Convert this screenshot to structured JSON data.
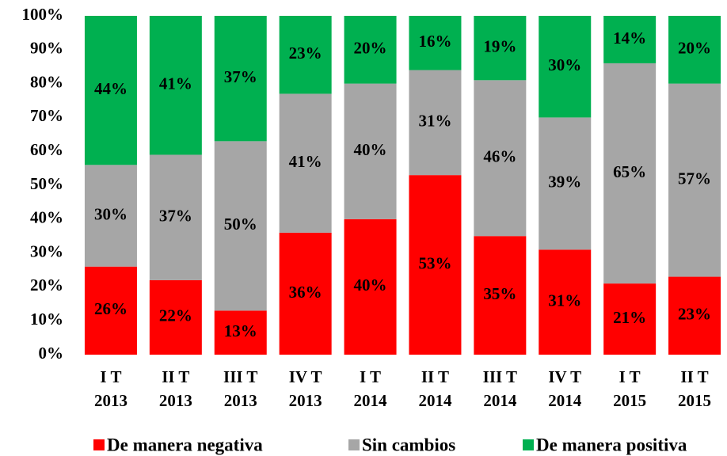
{
  "chart_data": {
    "type": "stacked_bar",
    "categories": [
      [
        "I T",
        "2013"
      ],
      [
        "II T",
        "2013"
      ],
      [
        "III T",
        "2013"
      ],
      [
        "IV T",
        "2013"
      ],
      [
        "I T",
        "2014"
      ],
      [
        "II T",
        "2014"
      ],
      [
        "III T",
        "2014"
      ],
      [
        "IV T",
        "2014"
      ],
      [
        "I T",
        "2015"
      ],
      [
        "II T",
        "2015"
      ]
    ],
    "series": [
      {
        "name": "De manera negativa",
        "color": "#ff0000",
        "values": [
          26,
          22,
          13,
          36,
          40,
          53,
          35,
          31,
          21,
          23
        ],
        "value_labels": [
          "26%",
          "22%",
          "13%",
          "36%",
          "40%",
          "53%",
          "35%",
          "31%",
          "21%",
          "23%"
        ]
      },
      {
        "name": "Sin cambios",
        "color": "#a6a6a6",
        "values": [
          30,
          37,
          50,
          41,
          40,
          31,
          46,
          39,
          65,
          57
        ],
        "value_labels": [
          "30%",
          "37%",
          "50%",
          "41%",
          "40%",
          "31%",
          "46%",
          "39%",
          "65%",
          "57%"
        ]
      },
      {
        "name": "De manera positiva",
        "color": "#00b050",
        "values": [
          44,
          41,
          37,
          23,
          20,
          16,
          19,
          30,
          14,
          20
        ],
        "value_labels": [
          "44%",
          "41%",
          "37%",
          "23%",
          "20%",
          "16%",
          "19%",
          "30%",
          "14%",
          "20%"
        ]
      }
    ],
    "ylim": [
      0,
      100
    ],
    "yticks": [
      {
        "value": 0,
        "label": "0%"
      },
      {
        "value": 10,
        "label": "10%"
      },
      {
        "value": 20,
        "label": "20%"
      },
      {
        "value": 30,
        "label": "30%"
      },
      {
        "value": 40,
        "label": "40%"
      },
      {
        "value": 50,
        "label": "50%"
      },
      {
        "value": 60,
        "label": "60%"
      },
      {
        "value": 70,
        "label": "70%"
      },
      {
        "value": 80,
        "label": "80%"
      },
      {
        "value": 90,
        "label": "90%"
      },
      {
        "value": 100,
        "label": "100%"
      }
    ],
    "grid": false,
    "legend": "bottom"
  }
}
